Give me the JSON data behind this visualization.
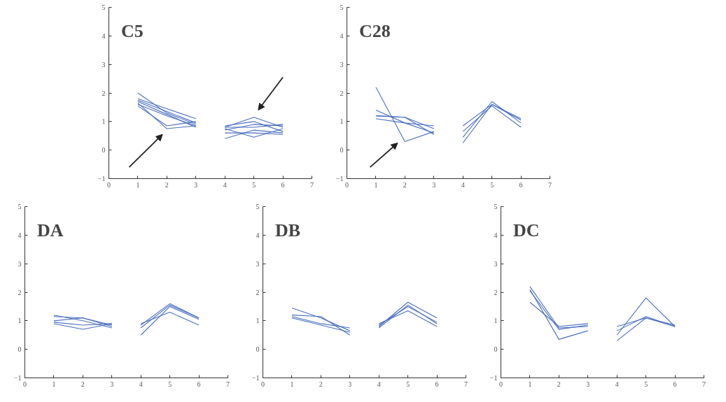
{
  "chart_data": [
    {
      "type": "line",
      "title": "C5",
      "xlim": [
        0,
        7
      ],
      "ylim": [
        -1,
        5
      ],
      "xticks": [
        0,
        1,
        2,
        3,
        4,
        5,
        6,
        7
      ],
      "yticks": [
        -1,
        0,
        1,
        2,
        3,
        4,
        5
      ],
      "grid": false,
      "series": [
        {
          "color": "#4a6fc0",
          "x": [
            1,
            2,
            3
          ],
          "values": [
            1.75,
            1.35,
            0.95
          ]
        },
        {
          "color": "#4a6fc0",
          "x": [
            1,
            2,
            3
          ],
          "values": [
            1.6,
            1.2,
            0.85
          ]
        },
        {
          "color": "#4a6fc0",
          "x": [
            1,
            2,
            3
          ],
          "values": [
            2.0,
            1.3,
            0.9
          ]
        },
        {
          "color": "#4a6fc0",
          "x": [
            1,
            2,
            3
          ],
          "values": [
            1.8,
            1.45,
            1.1
          ]
        },
        {
          "color": "#4a6fc0",
          "x": [
            1,
            2,
            3
          ],
          "values": [
            1.65,
            0.75,
            0.85
          ]
        },
        {
          "color": "#4a6fc0",
          "x": [
            1,
            2,
            3
          ],
          "values": [
            1.55,
            0.85,
            1.0
          ]
        },
        {
          "color": "#4a6fc0",
          "x": [
            1,
            2,
            3
          ],
          "values": [
            1.7,
            1.25,
            0.8
          ]
        },
        {
          "color": "#4a6fc0",
          "x": [
            4,
            5,
            6
          ],
          "values": [
            0.8,
            1.15,
            0.8
          ]
        },
        {
          "color": "#4a6fc0",
          "x": [
            4,
            5,
            6
          ],
          "values": [
            0.7,
            0.9,
            0.85
          ]
        },
        {
          "color": "#4a6fc0",
          "x": [
            4,
            5,
            6
          ],
          "values": [
            0.4,
            0.7,
            0.6
          ]
        },
        {
          "color": "#4a6fc0",
          "x": [
            4,
            5,
            6
          ],
          "values": [
            0.75,
            0.45,
            0.75
          ]
        },
        {
          "color": "#4a6fc0",
          "x": [
            4,
            5,
            6
          ],
          "values": [
            0.85,
            1.0,
            0.65
          ]
        },
        {
          "color": "#4a6fc0",
          "x": [
            4,
            5,
            6
          ],
          "values": [
            0.6,
            0.6,
            0.55
          ]
        },
        {
          "color": "#4a6fc0",
          "x": [
            4,
            5,
            6
          ],
          "values": [
            0.8,
            0.8,
            0.9
          ]
        }
      ]
    },
    {
      "type": "line",
      "title": "C28",
      "xlim": [
        0,
        7
      ],
      "ylim": [
        -1,
        5
      ],
      "xticks": [
        0,
        1,
        2,
        3,
        4,
        5,
        6,
        7
      ],
      "yticks": [
        -1,
        0,
        1,
        2,
        3,
        4,
        5
      ],
      "grid": false,
      "series": [
        {
          "color": "#4a6fc0",
          "x": [
            1,
            2,
            3
          ],
          "values": [
            2.2,
            0.3,
            0.65
          ]
        },
        {
          "color": "#4a6fc0",
          "x": [
            1,
            2,
            3
          ],
          "values": [
            1.4,
            0.95,
            0.6
          ]
        },
        {
          "color": "#4a6fc0",
          "x": [
            1,
            2,
            3
          ],
          "values": [
            1.2,
            1.15,
            0.75
          ]
        },
        {
          "color": "#4a6fc0",
          "x": [
            1,
            2,
            3
          ],
          "values": [
            1.1,
            0.95,
            0.85
          ]
        },
        {
          "color": "#4a6fc0",
          "x": [
            1,
            2,
            3
          ],
          "values": [
            1.2,
            1.15,
            0.55
          ]
        },
        {
          "color": "#4a6fc0",
          "x": [
            4,
            5,
            6
          ],
          "values": [
            0.85,
            1.6,
            1.05
          ]
        },
        {
          "color": "#4a6fc0",
          "x": [
            4,
            5,
            6
          ],
          "values": [
            0.65,
            1.55,
            0.8
          ]
        },
        {
          "color": "#4a6fc0",
          "x": [
            4,
            5,
            6
          ],
          "values": [
            0.45,
            1.7,
            0.95
          ]
        },
        {
          "color": "#4a6fc0",
          "x": [
            4,
            5,
            6
          ],
          "values": [
            0.25,
            1.6,
            1.1
          ]
        }
      ]
    },
    {
      "type": "line",
      "title": "DA",
      "xlim": [
        0,
        7
      ],
      "ylim": [
        -1,
        5
      ],
      "xticks": [
        0,
        1,
        2,
        3,
        4,
        5,
        6,
        7
      ],
      "yticks": [
        -1,
        0,
        1,
        2,
        3,
        4,
        5
      ],
      "grid": false,
      "series": [
        {
          "color": "#4a6fc0",
          "x": [
            1,
            2,
            3
          ],
          "values": [
            1.15,
            1.1,
            0.85
          ]
        },
        {
          "color": "#4a6fc0",
          "x": [
            1,
            2,
            3
          ],
          "values": [
            1.0,
            1.1,
            0.8
          ]
        },
        {
          "color": "#4a6fc0",
          "x": [
            1,
            2,
            3
          ],
          "values": [
            0.9,
            0.7,
            0.9
          ]
        },
        {
          "color": "#4a6fc0",
          "x": [
            1,
            2,
            3
          ],
          "values": [
            1.2,
            1.0,
            0.75
          ]
        },
        {
          "color": "#4a6fc0",
          "x": [
            1,
            2,
            3
          ],
          "values": [
            0.95,
            0.85,
            0.9
          ]
        },
        {
          "color": "#4a6fc0",
          "x": [
            4,
            5,
            6
          ],
          "values": [
            0.85,
            1.6,
            1.1
          ]
        },
        {
          "color": "#4a6fc0",
          "x": [
            4,
            5,
            6
          ],
          "values": [
            0.5,
            1.5,
            1.05
          ]
        },
        {
          "color": "#4a6fc0",
          "x": [
            4,
            5,
            6
          ],
          "values": [
            0.9,
            1.3,
            0.85
          ]
        },
        {
          "color": "#4a6fc0",
          "x": [
            4,
            5,
            6
          ],
          "values": [
            0.75,
            1.55,
            1.1
          ]
        }
      ]
    },
    {
      "type": "line",
      "title": "DB",
      "xlim": [
        0,
        7
      ],
      "ylim": [
        -1,
        5
      ],
      "xticks": [
        0,
        1,
        2,
        3,
        4,
        5,
        6,
        7
      ],
      "yticks": [
        -1,
        0,
        1,
        2,
        3,
        4,
        5
      ],
      "grid": false,
      "series": [
        {
          "color": "#4a6fc0",
          "x": [
            1,
            2,
            3
          ],
          "values": [
            1.45,
            1.1,
            0.65
          ]
        },
        {
          "color": "#4a6fc0",
          "x": [
            1,
            2,
            3
          ],
          "values": [
            1.2,
            1.15,
            0.5
          ]
        },
        {
          "color": "#4a6fc0",
          "x": [
            1,
            2,
            3
          ],
          "values": [
            1.15,
            0.9,
            0.75
          ]
        },
        {
          "color": "#4a6fc0",
          "x": [
            1,
            2,
            3
          ],
          "values": [
            1.1,
            0.85,
            0.6
          ]
        },
        {
          "color": "#4a6fc0",
          "x": [
            4,
            5,
            6
          ],
          "values": [
            0.8,
            1.65,
            1.1
          ]
        },
        {
          "color": "#4a6fc0",
          "x": [
            4,
            5,
            6
          ],
          "values": [
            0.85,
            1.5,
            0.95
          ]
        },
        {
          "color": "#4a6fc0",
          "x": [
            4,
            5,
            6
          ],
          "values": [
            0.9,
            1.35,
            0.8
          ]
        },
        {
          "color": "#4a6fc0",
          "x": [
            4,
            5,
            6
          ],
          "values": [
            0.75,
            1.55,
            0.9
          ]
        }
      ]
    },
    {
      "type": "line",
      "title": "DC",
      "xlim": [
        0,
        7
      ],
      "ylim": [
        -1,
        5
      ],
      "xticks": [
        0,
        1,
        2,
        3,
        4,
        5,
        6,
        7
      ],
      "yticks": [
        -1,
        0,
        1,
        2,
        3,
        4,
        5
      ],
      "grid": false,
      "series": [
        {
          "color": "#4a6fc0",
          "x": [
            1,
            2,
            3
          ],
          "values": [
            2.2,
            0.75,
            0.8
          ]
        },
        {
          "color": "#4a6fc0",
          "x": [
            1,
            2,
            3
          ],
          "values": [
            2.05,
            0.7,
            0.85
          ]
        },
        {
          "color": "#4a6fc0",
          "x": [
            1,
            2,
            3
          ],
          "values": [
            1.65,
            0.8,
            0.9
          ]
        },
        {
          "color": "#4a6fc0",
          "x": [
            1,
            2,
            3
          ],
          "values": [
            2.1,
            0.35,
            0.65
          ]
        },
        {
          "color": "#4a6fc0",
          "x": [
            4,
            5,
            6
          ],
          "values": [
            0.8,
            1.1,
            0.8
          ]
        },
        {
          "color": "#4a6fc0",
          "x": [
            4,
            5,
            6
          ],
          "values": [
            0.5,
            1.8,
            0.8
          ]
        },
        {
          "color": "#4a6fc0",
          "x": [
            4,
            5,
            6
          ],
          "values": [
            0.3,
            1.1,
            0.85
          ]
        },
        {
          "color": "#4a6fc0",
          "x": [
            4,
            5,
            6
          ],
          "values": [
            0.65,
            1.15,
            0.8
          ]
        }
      ]
    }
  ]
}
